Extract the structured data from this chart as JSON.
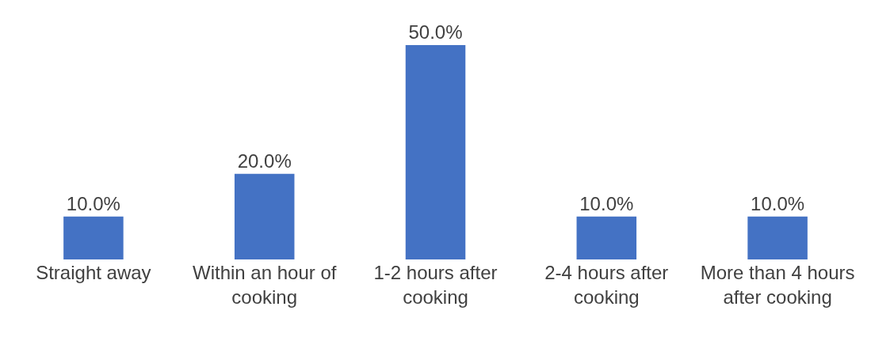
{
  "chart_data": {
    "type": "bar",
    "categories": [
      "Straight away",
      "Within an hour of cooking",
      "1-2 hours after cooking",
      "2-4 hours after cooking",
      "More than 4 hours after cooking"
    ],
    "values": [
      10.0,
      20.0,
      50.0,
      10.0,
      10.0
    ],
    "value_labels": [
      "10.0%",
      "20.0%",
      "50.0%",
      "10.0%",
      "10.0%"
    ],
    "color": "#4472c4"
  }
}
